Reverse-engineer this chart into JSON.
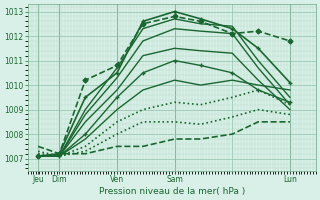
{
  "xlabel": "Pression niveau de la mer( hPa )",
  "ylabel": "",
  "bg_color": "#d8f0e8",
  "grid_color": "#b0d8c0",
  "line_color": "#1a6630",
  "ylim": [
    1006.5,
    1013.3
  ],
  "xlim": [
    0,
    5.0
  ],
  "yticks": [
    1007,
    1008,
    1009,
    1010,
    1011,
    1012,
    1013
  ],
  "xtick_labels": [
    "Jeu",
    "Dim",
    "Ven",
    "Sam",
    "",
    "Lun"
  ],
  "xtick_positions": [
    0.18,
    0.55,
    1.55,
    2.55,
    3.55,
    4.55
  ],
  "day_lines": [
    0.18,
    0.55,
    1.55,
    2.55,
    4.55
  ],
  "lines": [
    {
      "x": [
        0.18,
        0.55,
        1.0,
        1.55,
        2.0,
        2.55,
        3.0,
        3.55,
        4.0,
        4.55
      ],
      "y": [
        1007.1,
        1007.2,
        1010.2,
        1010.8,
        1012.5,
        1012.8,
        1012.6,
        1012.1,
        1012.2,
        1011.8
      ],
      "style": "--",
      "marker": "D",
      "ms": 2.5,
      "lw": 1.2
    },
    {
      "x": [
        0.18,
        0.55,
        1.0,
        1.55,
        2.0,
        2.55,
        3.0,
        3.55,
        4.0,
        4.55
      ],
      "y": [
        1007.1,
        1007.2,
        1009.5,
        1010.5,
        1012.6,
        1013.0,
        1012.7,
        1012.3,
        1011.5,
        1010.1
      ],
      "style": "-",
      "marker": "+",
      "ms": 3.5,
      "lw": 1.2
    },
    {
      "x": [
        0.18,
        0.55,
        1.0,
        1.55,
        2.0,
        2.55,
        3.0,
        3.55,
        4.0,
        4.55
      ],
      "y": [
        1007.1,
        1007.1,
        1009.0,
        1010.7,
        1012.3,
        1012.7,
        1012.5,
        1012.4,
        1011.0,
        1009.5
      ],
      "style": "-",
      "marker": null,
      "ms": 0,
      "lw": 1.0
    },
    {
      "x": [
        0.18,
        0.55,
        1.0,
        1.55,
        2.0,
        2.55,
        3.0,
        3.55,
        4.0,
        4.55
      ],
      "y": [
        1007.1,
        1007.1,
        1008.8,
        1010.3,
        1011.8,
        1012.3,
        1012.2,
        1012.1,
        1010.7,
        1009.2
      ],
      "style": "-",
      "marker": null,
      "ms": 0,
      "lw": 1.0
    },
    {
      "x": [
        0.18,
        0.55,
        1.0,
        1.55,
        2.0,
        2.55,
        3.0,
        3.55,
        4.0,
        4.55
      ],
      "y": [
        1007.1,
        1007.1,
        1008.5,
        1009.8,
        1011.2,
        1011.5,
        1011.4,
        1011.3,
        1010.2,
        1009.0
      ],
      "style": "-",
      "marker": null,
      "ms": 0,
      "lw": 1.0
    },
    {
      "x": [
        0.18,
        0.55,
        1.0,
        1.55,
        2.0,
        2.55,
        3.0,
        3.55,
        4.0,
        4.55
      ],
      "y": [
        1007.1,
        1007.1,
        1008.0,
        1009.5,
        1010.5,
        1011.0,
        1010.8,
        1010.5,
        1009.8,
        1009.3
      ],
      "style": "-",
      "marker": "+",
      "ms": 3.0,
      "lw": 1.0
    },
    {
      "x": [
        0.18,
        0.55,
        1.0,
        1.55,
        2.0,
        2.55,
        3.0,
        3.55,
        4.0,
        4.55
      ],
      "y": [
        1007.1,
        1007.1,
        1007.8,
        1009.0,
        1009.8,
        1010.2,
        1010.0,
        1010.2,
        1010.0,
        1009.8
      ],
      "style": "-",
      "marker": null,
      "ms": 0,
      "lw": 1.0
    },
    {
      "x": [
        0.18,
        0.55,
        1.0,
        1.55,
        2.0,
        2.55,
        3.0,
        3.55,
        4.0,
        4.55
      ],
      "y": [
        1007.2,
        1007.1,
        1007.5,
        1008.5,
        1009.0,
        1009.3,
        1009.2,
        1009.5,
        1009.8,
        1009.2
      ],
      "style": ":",
      "marker": null,
      "ms": 0,
      "lw": 1.2
    },
    {
      "x": [
        0.18,
        0.55,
        1.0,
        1.55,
        2.0,
        2.55,
        3.0,
        3.55,
        4.0,
        4.55
      ],
      "y": [
        1007.3,
        1007.1,
        1007.3,
        1008.0,
        1008.5,
        1008.5,
        1008.4,
        1008.7,
        1009.0,
        1008.8
      ],
      "style": ":",
      "marker": null,
      "ms": 0,
      "lw": 1.2
    },
    {
      "x": [
        0.18,
        0.55,
        1.0,
        1.55,
        2.0,
        2.55,
        3.0,
        3.55,
        4.0,
        4.55
      ],
      "y": [
        1007.5,
        1007.2,
        1007.2,
        1007.5,
        1007.5,
        1007.8,
        1007.8,
        1008.0,
        1008.5,
        1008.5
      ],
      "style": "--",
      "marker": null,
      "ms": 0,
      "lw": 1.2
    }
  ]
}
